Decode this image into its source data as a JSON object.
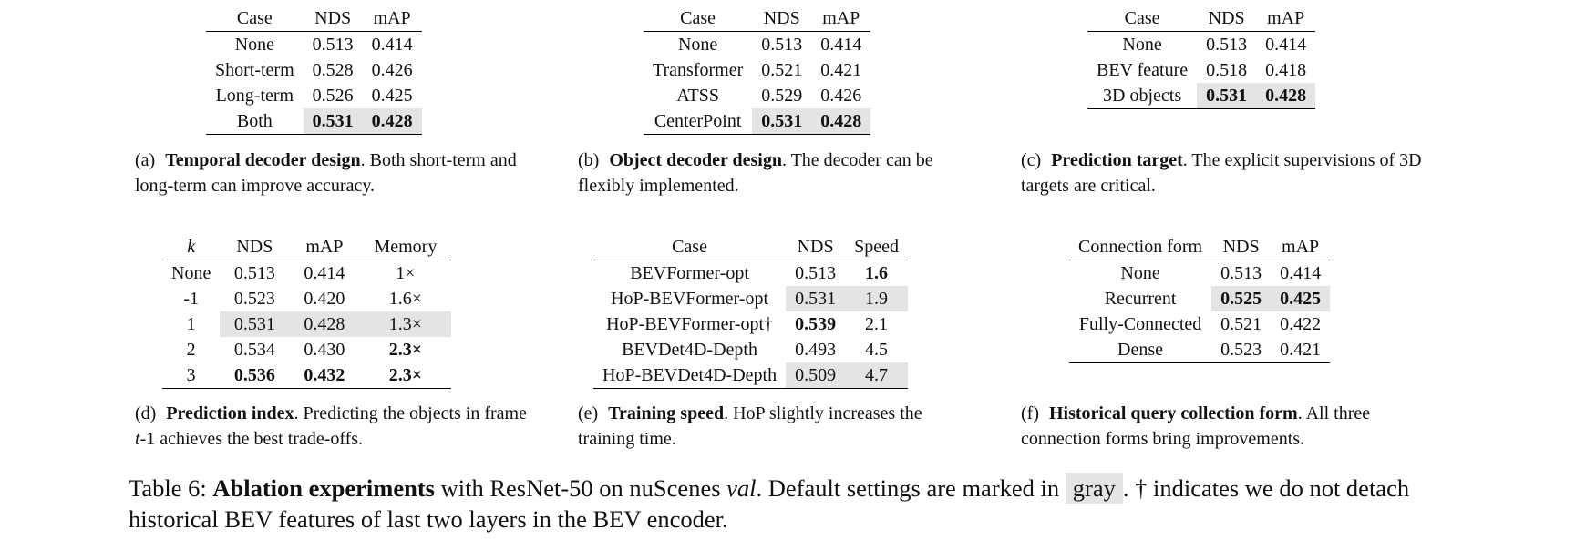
{
  "tables": {
    "a": {
      "header": [
        "Case",
        "NDS",
        "mAP"
      ],
      "rows": [
        [
          "None",
          "0.513",
          "0.414"
        ],
        [
          "Short-term",
          "0.528",
          "0.426"
        ],
        [
          "Long-term",
          "0.526",
          "0.425"
        ],
        [
          "Both",
          "0.531",
          "0.428"
        ]
      ],
      "caption_label": "(a)",
      "caption_title": "Temporal decoder design",
      "caption_text": ". Both short-term and long-term can improve accuracy."
    },
    "b": {
      "header": [
        "Case",
        "NDS",
        "mAP"
      ],
      "rows": [
        [
          "None",
          "0.513",
          "0.414"
        ],
        [
          "Transformer",
          "0.521",
          "0.421"
        ],
        [
          "ATSS",
          "0.529",
          "0.426"
        ],
        [
          "CenterPoint",
          "0.531",
          "0.428"
        ]
      ],
      "caption_label": "(b)",
      "caption_title": "Object decoder design",
      "caption_text": ". The decoder can be flexibly implemented."
    },
    "c": {
      "header": [
        "Case",
        "NDS",
        "mAP"
      ],
      "rows": [
        [
          "None",
          "0.513",
          "0.414"
        ],
        [
          "BEV feature",
          "0.518",
          "0.418"
        ],
        [
          "3D objects",
          "0.531",
          "0.428"
        ]
      ],
      "caption_label": "(c)",
      "caption_title": "Prediction target",
      "caption_text": ". The explicit supervisions of 3D targets are critical."
    },
    "d": {
      "header": [
        "k",
        "NDS",
        "mAP",
        "Memory"
      ],
      "rows": [
        [
          "None",
          "0.513",
          "0.414",
          "1×"
        ],
        [
          "-1",
          "0.523",
          "0.420",
          "1.6×"
        ],
        [
          "1",
          "0.531",
          "0.428",
          "1.3×"
        ],
        [
          "2",
          "0.534",
          "0.430",
          "2.3×"
        ],
        [
          "3",
          "0.536",
          "0.432",
          "2.3×"
        ]
      ],
      "caption_label": "(d)",
      "caption_title": "Prediction index",
      "caption_text_1": ". Predicting the objects in frame ",
      "caption_italic": "t",
      "caption_text_2": "-1 achieves the best trade-offs."
    },
    "e": {
      "header": [
        "Case",
        "NDS",
        "Speed"
      ],
      "rows": [
        [
          "BEVFormer-opt",
          "0.513",
          "1.6"
        ],
        [
          "HoP-BEVFormer-opt",
          "0.531",
          "1.9"
        ],
        [
          "HoP-BEVFormer-opt†",
          "0.539",
          "2.1"
        ],
        [
          "BEVDet4D-Depth",
          "0.493",
          "4.5"
        ],
        [
          "HoP-BEVDet4D-Depth",
          "0.509",
          "4.7"
        ]
      ],
      "caption_label": "(e)",
      "caption_title": "Training speed",
      "caption_text": ". HoP slightly increases the training time."
    },
    "f": {
      "header": [
        "Connection form",
        "NDS",
        "mAP"
      ],
      "rows": [
        [
          "None",
          "0.513",
          "0.414"
        ],
        [
          "Recurrent",
          "0.525",
          "0.425"
        ],
        [
          "Fully-Connected",
          "0.521",
          "0.422"
        ],
        [
          "Dense",
          "0.523",
          "0.421"
        ]
      ],
      "caption_label": "(f)",
      "caption_title": "Historical query collection form",
      "caption_text": ". All three connection forms bring improvements."
    }
  },
  "main_caption": {
    "label": "Table 6:",
    "title": "Ablation experiments",
    "text_1": " with ResNet-50 on nuScenes ",
    "italic": "val",
    "text_2": ". Default settings are marked in ",
    "gray_word": "gray",
    "text_3": ". † indicates we do not detach historical BEV features of last two layers in the BEV encoder."
  }
}
